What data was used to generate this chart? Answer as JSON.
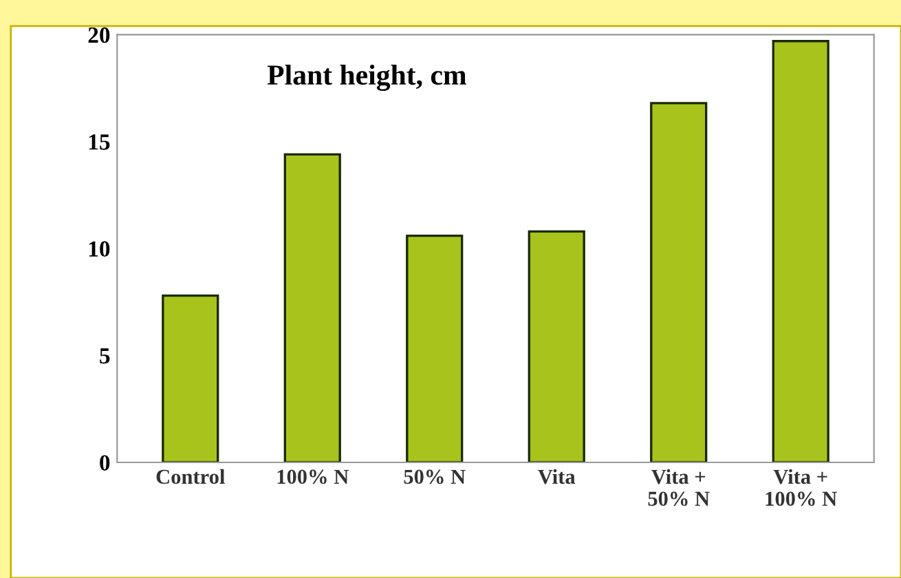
{
  "chart_data": {
    "type": "bar",
    "title": "Plant height, cm",
    "categories": [
      "Control",
      "100% N",
      "50% N",
      "Vita",
      "Vita +\n50% N",
      "Vita +\n100% N"
    ],
    "values": [
      7.8,
      14.4,
      10.6,
      10.8,
      16.8,
      19.7
    ],
    "color": "#a8c41c",
    "ylim": [
      0,
      20
    ],
    "yticks": [
      0,
      5,
      10,
      15,
      20
    ],
    "grid": false
  }
}
